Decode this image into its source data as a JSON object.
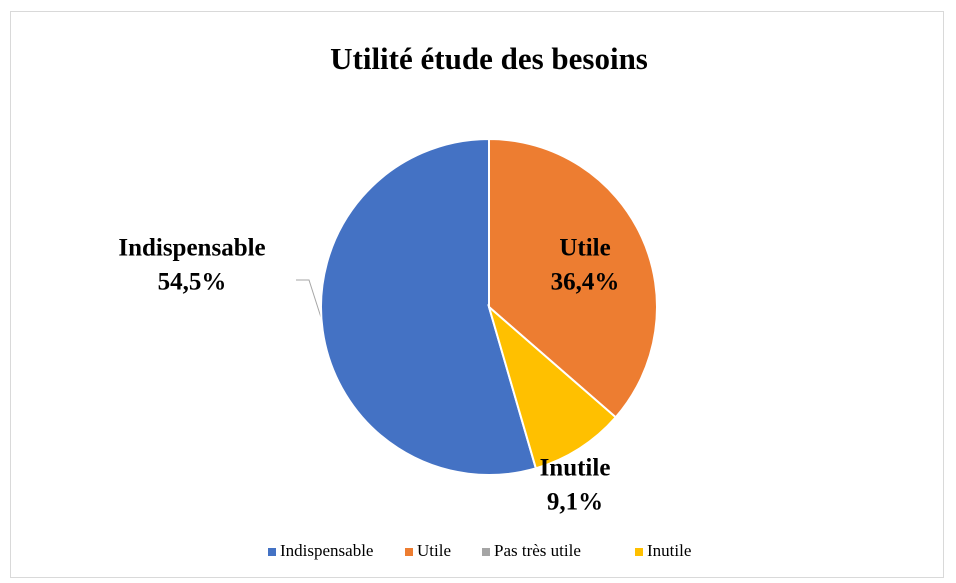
{
  "chart_data": {
    "type": "pie",
    "title": "Utilité étude des besoins",
    "categories": [
      "Indispensable",
      "Utile",
      "Pas très utile",
      "Inutile"
    ],
    "values": [
      54.5,
      36.4,
      0,
      9.1
    ],
    "value_labels": [
      "54,5%",
      "36,4%",
      null,
      "9,1%"
    ],
    "colors": [
      "#4472c4",
      "#ed7d31",
      "#a5a5a5",
      "#ffc000"
    ],
    "legend": "bottom"
  }
}
